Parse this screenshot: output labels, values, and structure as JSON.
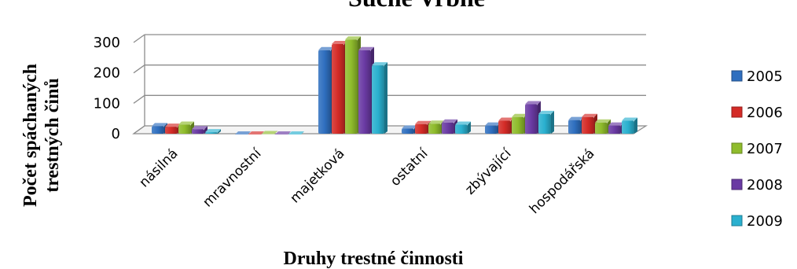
{
  "chart_data": {
    "type": "bar",
    "title": "Suché Vrbné",
    "xlabel": "Druhy trestné činnosti",
    "ylabel": "Počet spáchaných trestných činů",
    "ylabel_lines": [
      "Počet spáchaných",
      "trestných činů"
    ],
    "ylim": [
      0,
      300
    ],
    "yticks": [
      "0",
      "100",
      "200",
      "300"
    ],
    "grid": true,
    "legend_position": "right",
    "categories": [
      "násilná",
      "mravnostní",
      "majetková",
      "ostatní",
      "zbývající",
      "hospodářská"
    ],
    "series": [
      {
        "name": "2005",
        "values": [
          30,
          2,
          280,
          22,
          32,
          50
        ],
        "color": "#2f6fbf"
      },
      {
        "name": "2006",
        "values": [
          28,
          2,
          300,
          37,
          48,
          60
        ],
        "color": "#d42b27"
      },
      {
        "name": "2007",
        "values": [
          35,
          4,
          315,
          38,
          60,
          42
        ],
        "color": "#8fbc2c"
      },
      {
        "name": "2008",
        "values": [
          20,
          2,
          280,
          42,
          102,
          32
        ],
        "color": "#6a3aa3"
      },
      {
        "name": "2009",
        "values": [
          10,
          2,
          230,
          35,
          70,
          48
        ],
        "color": "#2ab0cf"
      }
    ]
  }
}
